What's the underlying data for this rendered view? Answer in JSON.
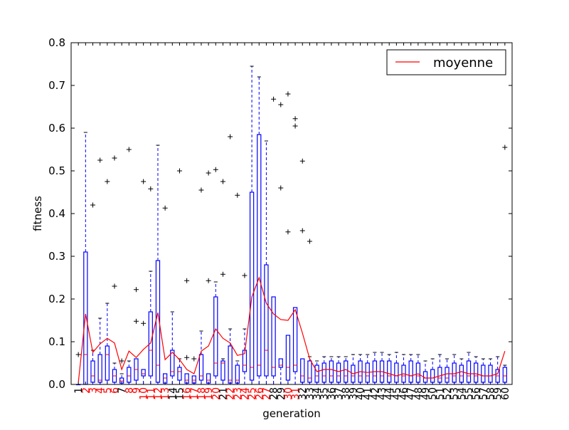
{
  "chart_data": {
    "type": "boxplot",
    "title": "",
    "xlabel": "generation",
    "ylabel": "fitness",
    "ylim": [
      0.0,
      0.8
    ],
    "yticks": [
      "0.0",
      "0.1",
      "0.2",
      "0.3",
      "0.4",
      "0.5",
      "0.6",
      "0.7",
      "0.8"
    ],
    "legend": {
      "label": "moyenne",
      "location": "top-right",
      "color": "#ff0000"
    },
    "colors": {
      "box": "#0000ff",
      "median": "#ff0000",
      "mean_line": "#ff0000",
      "outlier": "#000000",
      "highlight_tick": "#ff0000",
      "normal_tick": "#000000"
    },
    "generations": [
      "1",
      "2",
      "3",
      "4",
      "5",
      "6",
      "7",
      "8",
      "9",
      "10",
      "11",
      "12",
      "13",
      "14",
      "15",
      "16",
      "17",
      "18",
      "19",
      "20",
      "21",
      "22",
      "23",
      "24",
      "25",
      "26",
      "27",
      "28",
      "29",
      "30",
      "31",
      "32",
      "33",
      "34",
      "35",
      "36",
      "37",
      "38",
      "39",
      "40",
      "41",
      "42",
      "43",
      "44",
      "45",
      "46",
      "47",
      "48",
      "49",
      "50",
      "51",
      "52",
      "53",
      "54",
      "55",
      "56",
      "57",
      "58",
      "59",
      "60"
    ],
    "highlighted_generations": [
      "2",
      "3",
      "4",
      "5",
      "6",
      "8",
      "9",
      "10",
      "11",
      "12",
      "13",
      "16",
      "17",
      "18",
      "19",
      "20",
      "22",
      "23",
      "24",
      "25",
      "26",
      "27",
      "30",
      "31"
    ],
    "boxes": [
      {
        "g": "1",
        "wlo": 0,
        "q1": 0,
        "med": 0,
        "q3": 0,
        "whi": 0,
        "outliers": [
          0.07
        ]
      },
      {
        "g": "2",
        "wlo": 0,
        "q1": 0,
        "med": 0.07,
        "q3": 0.31,
        "whi": 0.59,
        "outliers": []
      },
      {
        "g": "3",
        "wlo": 0,
        "q1": 0.005,
        "med": 0.02,
        "q3": 0.055,
        "whi": 0.08,
        "outliers": [
          0.42
        ]
      },
      {
        "g": "4",
        "wlo": 0,
        "q1": 0.005,
        "med": 0.01,
        "q3": 0.07,
        "whi": 0.155,
        "outliers": [
          0.525
        ]
      },
      {
        "g": "5",
        "wlo": 0,
        "q1": 0.01,
        "med": 0.07,
        "q3": 0.09,
        "whi": 0.19,
        "outliers": [
          0.475
        ]
      },
      {
        "g": "6",
        "wlo": 0,
        "q1": 0.005,
        "med": 0.02,
        "q3": 0.035,
        "whi": 0.05,
        "outliers": [
          0.23,
          0.53
        ]
      },
      {
        "g": "7",
        "wlo": 0,
        "q1": 0.003,
        "med": 0.008,
        "q3": 0.015,
        "whi": 0.025,
        "outliers": [
          0.055
        ]
      },
      {
        "g": "8",
        "wlo": 0,
        "q1": 0.005,
        "med": 0.02,
        "q3": 0.04,
        "whi": 0.055,
        "outliers": [
          0.55
        ]
      },
      {
        "g": "9",
        "wlo": 0,
        "q1": 0.01,
        "med": 0.035,
        "q3": 0.06,
        "whi": 0.06,
        "outliers": [
          0.148,
          0.222
        ]
      },
      {
        "g": "10",
        "wlo": 0,
        "q1": 0.02,
        "med": 0.025,
        "q3": 0.035,
        "whi": 0.035,
        "outliers": [
          0.143,
          0.475
        ]
      },
      {
        "g": "11",
        "wlo": 0,
        "q1": 0.02,
        "med": 0.08,
        "q3": 0.17,
        "whi": 0.265,
        "outliers": [
          0.458
        ]
      },
      {
        "g": "12",
        "wlo": 0,
        "q1": 0.005,
        "med": 0.045,
        "q3": 0.29,
        "whi": 0.56,
        "outliers": []
      },
      {
        "g": "13",
        "wlo": 0,
        "q1": 0.003,
        "med": 0.015,
        "q3": 0.025,
        "whi": 0.025,
        "outliers": [
          0.413
        ]
      },
      {
        "g": "14",
        "wlo": 0,
        "q1": 0.02,
        "med": 0.03,
        "q3": 0.08,
        "whi": 0.17,
        "outliers": []
      },
      {
        "g": "15",
        "wlo": 0,
        "q1": 0.01,
        "med": 0.03,
        "q3": 0.04,
        "whi": 0.06,
        "outliers": [
          0.5
        ]
      },
      {
        "g": "16",
        "wlo": 0,
        "q1": 0.003,
        "med": 0.01,
        "q3": 0.025,
        "whi": 0.025,
        "outliers": [
          0.063,
          0.243
        ]
      },
      {
        "g": "17",
        "wlo": 0,
        "q1": 0.003,
        "med": 0.01,
        "q3": 0.02,
        "whi": 0.02,
        "outliers": [
          0.06
        ]
      },
      {
        "g": "18",
        "wlo": 0,
        "q1": 0.01,
        "med": 0.02,
        "q3": 0.07,
        "whi": 0.125,
        "outliers": [
          0.455
        ]
      },
      {
        "g": "19",
        "wlo": 0,
        "q1": 0.003,
        "med": 0.01,
        "q3": 0.025,
        "whi": 0.025,
        "outliers": [
          0.243,
          0.495
        ]
      },
      {
        "g": "20",
        "wlo": 0,
        "q1": 0.02,
        "med": 0.05,
        "q3": 0.205,
        "whi": 0.24,
        "outliers": [
          0.503
        ]
      },
      {
        "g": "21",
        "wlo": 0,
        "q1": 0.01,
        "med": 0.05,
        "q3": 0.055,
        "whi": 0.06,
        "outliers": [
          0.258,
          0.475
        ]
      },
      {
        "g": "22",
        "wlo": 0,
        "q1": 0.003,
        "med": 0.01,
        "q3": 0.09,
        "whi": 0.13,
        "outliers": [
          0.58
        ]
      },
      {
        "g": "23",
        "wlo": 0,
        "q1": 0.003,
        "med": 0.01,
        "q3": 0.045,
        "whi": 0.055,
        "outliers": [
          0.443
        ]
      },
      {
        "g": "24",
        "wlo": 0,
        "q1": 0.03,
        "med": 0.045,
        "q3": 0.08,
        "whi": 0.13,
        "outliers": [
          0.255
        ]
      },
      {
        "g": "25",
        "wlo": 0,
        "q1": 0.01,
        "med": 0.04,
        "q3": 0.45,
        "whi": 0.745,
        "outliers": []
      },
      {
        "g": "26",
        "wlo": 0,
        "q1": 0.02,
        "med": 0.045,
        "q3": 0.585,
        "whi": 0.72,
        "outliers": []
      },
      {
        "g": "27",
        "wlo": 0,
        "q1": 0.02,
        "med": 0.08,
        "q3": 0.28,
        "whi": 0.57,
        "outliers": []
      },
      {
        "g": "28",
        "wlo": 0,
        "q1": 0.02,
        "med": 0.04,
        "q3": 0.205,
        "whi": 0.205,
        "outliers": [
          0.668
        ]
      },
      {
        "g": "29",
        "wlo": 0,
        "q1": 0.04,
        "med": 0.045,
        "q3": 0.06,
        "whi": 0.06,
        "outliers": [
          0.46,
          0.655
        ]
      },
      {
        "g": "30",
        "wlo": 0,
        "q1": 0.01,
        "med": 0.04,
        "q3": 0.115,
        "whi": 0.115,
        "outliers": [
          0.357,
          0.68
        ]
      },
      {
        "g": "31",
        "wlo": 0,
        "q1": 0.03,
        "med": 0.045,
        "q3": 0.18,
        "whi": 0.18,
        "outliers": [
          0.605,
          0.622
        ]
      },
      {
        "g": "32",
        "wlo": 0,
        "q1": 0.005,
        "med": 0.02,
        "q3": 0.06,
        "whi": 0.06,
        "outliers": [
          0.36,
          0.523
        ]
      },
      {
        "g": "33",
        "wlo": 0,
        "q1": 0.005,
        "med": 0.015,
        "q3": 0.055,
        "whi": 0.065,
        "outliers": [
          0.335
        ]
      },
      {
        "g": "34",
        "wlo": 0,
        "q1": 0.005,
        "med": 0.02,
        "q3": 0.045,
        "whi": 0.055,
        "outliers": []
      },
      {
        "g": "35",
        "wlo": 0,
        "q1": 0.005,
        "med": 0.02,
        "q3": 0.05,
        "whi": 0.065,
        "outliers": []
      },
      {
        "g": "36",
        "wlo": 0,
        "q1": 0.005,
        "med": 0.02,
        "q3": 0.055,
        "whi": 0.065,
        "outliers": []
      },
      {
        "g": "37",
        "wlo": 0,
        "q1": 0.005,
        "med": 0.02,
        "q3": 0.05,
        "whi": 0.065,
        "outliers": []
      },
      {
        "g": "38",
        "wlo": 0,
        "q1": 0.005,
        "med": 0.02,
        "q3": 0.055,
        "whi": 0.065,
        "outliers": []
      },
      {
        "g": "39",
        "wlo": 0,
        "q1": 0.005,
        "med": 0.02,
        "q3": 0.045,
        "whi": 0.07,
        "outliers": []
      },
      {
        "g": "40",
        "wlo": 0,
        "q1": 0.005,
        "med": 0.02,
        "q3": 0.055,
        "whi": 0.07,
        "outliers": []
      },
      {
        "g": "41",
        "wlo": 0,
        "q1": 0.005,
        "med": 0.02,
        "q3": 0.05,
        "whi": 0.07,
        "outliers": []
      },
      {
        "g": "42",
        "wlo": 0,
        "q1": 0.005,
        "med": 0.02,
        "q3": 0.055,
        "whi": 0.075,
        "outliers": []
      },
      {
        "g": "43",
        "wlo": 0,
        "q1": 0.005,
        "med": 0.02,
        "q3": 0.055,
        "whi": 0.075,
        "outliers": []
      },
      {
        "g": "44",
        "wlo": 0,
        "q1": 0.005,
        "med": 0.02,
        "q3": 0.055,
        "whi": 0.07,
        "outliers": []
      },
      {
        "g": "45",
        "wlo": 0,
        "q1": 0.005,
        "med": 0.02,
        "q3": 0.05,
        "whi": 0.075,
        "outliers": []
      },
      {
        "g": "46",
        "wlo": 0,
        "q1": 0.005,
        "med": 0.02,
        "q3": 0.045,
        "whi": 0.07,
        "outliers": []
      },
      {
        "g": "47",
        "wlo": 0,
        "q1": 0.005,
        "med": 0.02,
        "q3": 0.055,
        "whi": 0.07,
        "outliers": []
      },
      {
        "g": "48",
        "wlo": 0,
        "q1": 0.005,
        "med": 0.02,
        "q3": 0.05,
        "whi": 0.07,
        "outliers": []
      },
      {
        "g": "49",
        "wlo": 0,
        "q1": 0.005,
        "med": 0.015,
        "q3": 0.03,
        "whi": 0.055,
        "outliers": []
      },
      {
        "g": "50",
        "wlo": 0,
        "q1": 0.005,
        "med": 0.015,
        "q3": 0.035,
        "whi": 0.06,
        "outliers": []
      },
      {
        "g": "51",
        "wlo": 0,
        "q1": 0.005,
        "med": 0.015,
        "q3": 0.04,
        "whi": 0.07,
        "outliers": []
      },
      {
        "g": "52",
        "wlo": 0,
        "q1": 0.005,
        "med": 0.015,
        "q3": 0.04,
        "whi": 0.06,
        "outliers": []
      },
      {
        "g": "53",
        "wlo": 0,
        "q1": 0.005,
        "med": 0.02,
        "q3": 0.05,
        "whi": 0.07,
        "outliers": []
      },
      {
        "g": "54",
        "wlo": 0,
        "q1": 0.005,
        "med": 0.02,
        "q3": 0.045,
        "whi": 0.06,
        "outliers": []
      },
      {
        "g": "55",
        "wlo": 0,
        "q1": 0.005,
        "med": 0.02,
        "q3": 0.055,
        "whi": 0.075,
        "outliers": []
      },
      {
        "g": "56",
        "wlo": 0,
        "q1": 0.005,
        "med": 0.02,
        "q3": 0.05,
        "whi": 0.065,
        "outliers": []
      },
      {
        "g": "57",
        "wlo": 0,
        "q1": 0.005,
        "med": 0.02,
        "q3": 0.045,
        "whi": 0.06,
        "outliers": []
      },
      {
        "g": "58",
        "wlo": 0,
        "q1": 0.005,
        "med": 0.02,
        "q3": 0.045,
        "whi": 0.06,
        "outliers": []
      },
      {
        "g": "59",
        "wlo": 0,
        "q1": 0.005,
        "med": 0.02,
        "q3": 0.035,
        "whi": 0.065,
        "outliers": []
      },
      {
        "g": "60",
        "wlo": 0,
        "q1": 0.005,
        "med": 0.02,
        "q3": 0.04,
        "whi": 0.045,
        "outliers": [
          0.555
        ]
      }
    ],
    "mean_series": {
      "name": "moyenne",
      "values": [
        0.005,
        0.165,
        0.075,
        0.095,
        0.108,
        0.097,
        0.035,
        0.078,
        0.063,
        0.082,
        0.097,
        0.168,
        0.058,
        0.075,
        0.058,
        0.035,
        0.025,
        0.078,
        0.09,
        0.13,
        0.108,
        0.097,
        0.068,
        0.072,
        0.205,
        0.25,
        0.19,
        0.165,
        0.152,
        0.15,
        0.175,
        0.12,
        0.06,
        0.03,
        0.035,
        0.035,
        0.03,
        0.035,
        0.025,
        0.03,
        0.028,
        0.03,
        0.03,
        0.025,
        0.02,
        0.025,
        0.02,
        0.025,
        0.015,
        0.015,
        0.02,
        0.025,
        0.025,
        0.03,
        0.025,
        0.025,
        0.02,
        0.02,
        0.025,
        0.078
      ]
    }
  }
}
